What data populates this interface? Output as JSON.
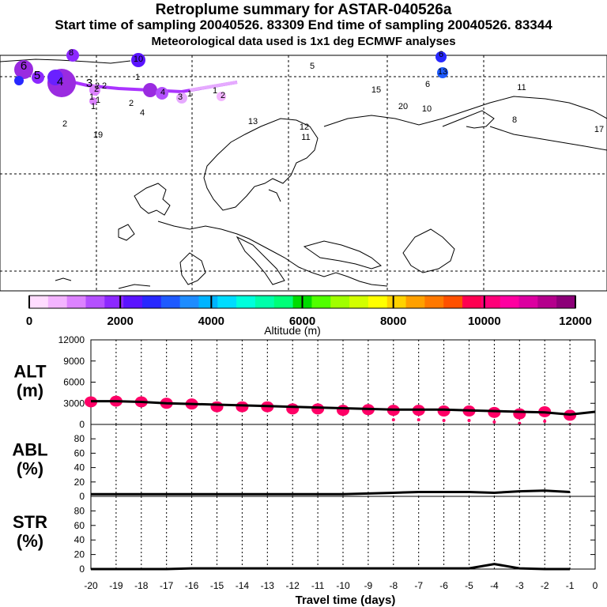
{
  "header": {
    "title": "Retroplume summary for ASTAR-040526a",
    "subtitle": "Start time of sampling 20040526. 83309     End time of sampling 20040526. 83344",
    "meteo": "Meteorological data used is 1x1 deg ECMWF analyses"
  },
  "colors": {
    "plume": "#ff0066",
    "line": "#000000",
    "trajectory": "#aa33ff",
    "colorbar": [
      "#ffdcff",
      "#f3b4ff",
      "#dc82ff",
      "#b450ff",
      "#8c28ff",
      "#5a14ff",
      "#2828ff",
      "#1e5aff",
      "#1e8cff",
      "#00b4ff",
      "#00dcff",
      "#00ffdc",
      "#00ffaa",
      "#00ff78",
      "#00dc00",
      "#50ff00",
      "#a0ff00",
      "#d2ff00",
      "#ffff00",
      "#ffd200",
      "#ffa000",
      "#ff7800",
      "#ff5000",
      "#ff0050",
      "#ff0078",
      "#ff00a0",
      "#dc00a0",
      "#b4008c",
      "#8c0078"
    ]
  },
  "colorbar": {
    "tick_labels": [
      "0",
      "2000",
      "4000",
      "6000",
      "8000",
      "10000",
      "12000"
    ],
    "label": "Altitude (m)"
  },
  "map_labels": [
    "6",
    "5",
    "4",
    "3",
    "2",
    "2",
    "1",
    "1",
    "1",
    "1",
    "2",
    "2",
    "2",
    "4",
    "3",
    "4",
    "1",
    "1",
    "2",
    "19",
    "13",
    "12",
    "11",
    "5",
    "15",
    "20",
    "10",
    "6",
    "13",
    "11",
    "8",
    "17",
    "6",
    "8",
    "10"
  ],
  "chart_data": [
    {
      "type": "line",
      "name": "ALT",
      "ylabel": "ALT\n(m)",
      "ylabel_lines": [
        "ALT",
        "(m)"
      ],
      "ylim": [
        0,
        12000
      ],
      "yticks": [
        "0",
        "3000",
        "6000",
        "9000",
        "12000"
      ],
      "x": [
        -20,
        -19,
        -18,
        -17,
        -16,
        -15,
        -14,
        -13,
        -12,
        -11,
        -10,
        -9,
        -8,
        -7,
        -6,
        -5,
        -4,
        -3,
        -2,
        -1,
        0
      ],
      "mean": [
        3300,
        3300,
        3200,
        3000,
        2900,
        2800,
        2700,
        2600,
        2500,
        2400,
        2300,
        2200,
        2100,
        2100,
        2100,
        2000,
        1900,
        1800,
        1700,
        1400,
        1800
      ],
      "plume_x": [
        -20,
        -19,
        -18,
        -17,
        -16,
        -15,
        -14,
        -13,
        -12,
        -11,
        -10,
        -9,
        -8,
        -7,
        -6,
        -5,
        -4,
        -3,
        -2,
        -1
      ],
      "plume_y": [
        3200,
        3300,
        3200,
        3000,
        2900,
        2500,
        2500,
        2500,
        2200,
        2200,
        2000,
        2100,
        2000,
        2000,
        1900,
        1900,
        1700,
        1500,
        1800,
        1300
      ]
    },
    {
      "type": "line",
      "name": "ABL",
      "ylabel": "ABL\n(%)",
      "ylabel_lines": [
        "ABL",
        "(%)"
      ],
      "ylim": [
        0,
        100
      ],
      "yticks": [
        "0",
        "20",
        "40",
        "60",
        "80"
      ],
      "x": [
        -20,
        -19,
        -18,
        -17,
        -16,
        -15,
        -14,
        -13,
        -12,
        -11,
        -10,
        -9,
        -8,
        -7,
        -6,
        -5,
        -4,
        -3,
        -2,
        -1
      ],
      "values": [
        3,
        3,
        3,
        3,
        3,
        3,
        3,
        3,
        3,
        3,
        3,
        4,
        5,
        6,
        6,
        6,
        5,
        7,
        8,
        6
      ]
    },
    {
      "type": "line",
      "name": "STR",
      "ylabel": "STR\n(%)",
      "ylabel_lines": [
        "STR",
        "(%)"
      ],
      "ylim": [
        0,
        100
      ],
      "yticks": [
        "0",
        "20",
        "40",
        "60",
        "80"
      ],
      "x": [
        -20,
        -19,
        -18,
        -17,
        -16,
        -15,
        -14,
        -13,
        -12,
        -11,
        -10,
        -9,
        -8,
        -7,
        -6,
        -5,
        -4,
        -3,
        -2,
        -1
      ],
      "values": [
        0,
        0,
        0,
        0,
        1,
        1,
        1,
        1,
        1,
        1,
        1,
        1,
        1,
        1,
        1,
        1,
        7,
        1,
        0,
        0
      ]
    }
  ],
  "xaxis": {
    "label": "Travel time (days)",
    "ticks": [
      "-20",
      "-19",
      "-18",
      "-17",
      "-16",
      "-15",
      "-14",
      "-13",
      "-12",
      "-11",
      "-10",
      "-9",
      "-8",
      "-7",
      "-6",
      "-5",
      "-4",
      "-3",
      "-2",
      "-1",
      "0"
    ]
  }
}
